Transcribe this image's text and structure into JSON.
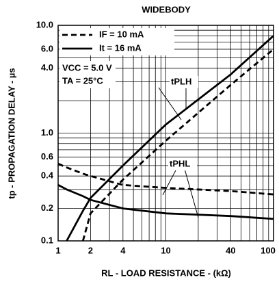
{
  "chart_data": {
    "type": "line",
    "title": "WIDEBODY",
    "x_label": "RL - LOAD RESISTANCE - (kΩ)",
    "y_label": "tp - PROPAGATION DELAY - µs",
    "log_x": true,
    "log_y": true,
    "xlim": [
      1,
      100
    ],
    "ylim": [
      0.1,
      10
    ],
    "xticks": [
      1,
      2,
      4,
      10,
      40,
      100
    ],
    "yticks": [
      0.1,
      0.2,
      0.4,
      0.6,
      {
        "value": 1,
        "label": "1.0"
      },
      {
        "value": 4,
        "label": "4.0"
      },
      {
        "value": 6,
        "label": "6.0"
      },
      {
        "value": 10,
        "label": "10.0"
      }
    ],
    "xminor": [
      3,
      5,
      6,
      7,
      8,
      9,
      20,
      30,
      50,
      60,
      70,
      80,
      90
    ],
    "yminor": [
      0.3,
      0.5,
      0.7,
      0.8,
      0.9,
      2,
      3,
      5,
      7,
      8,
      9
    ],
    "annotations": [
      "VCC = 5.0 V",
      "TA = 25°C",
      "tPLH",
      "tPHL"
    ],
    "x": [
      1,
      1.2,
      1.7,
      2,
      4,
      10,
      40,
      100
    ],
    "series": [
      {
        "name": "IF = 10 mA",
        "color": "#000000",
        "dashed": true,
        "plh": [
          null,
          null,
          0.1,
          0.18,
          0.37,
          0.85,
          2.8,
          6
        ],
        "phl": [
          0.52,
          0.48,
          0.42,
          0.4,
          0.33,
          0.31,
          0.29,
          0.27
        ]
      },
      {
        "name": "It = 16 mA",
        "color": "#000000",
        "dashed": false,
        "plh": [
          null,
          0.1,
          0.19,
          0.25,
          0.5,
          1.2,
          3.5,
          8
        ],
        "phl": [
          0.33,
          0.3,
          0.26,
          0.24,
          0.2,
          0.18,
          0.17,
          0.16
        ]
      }
    ]
  }
}
